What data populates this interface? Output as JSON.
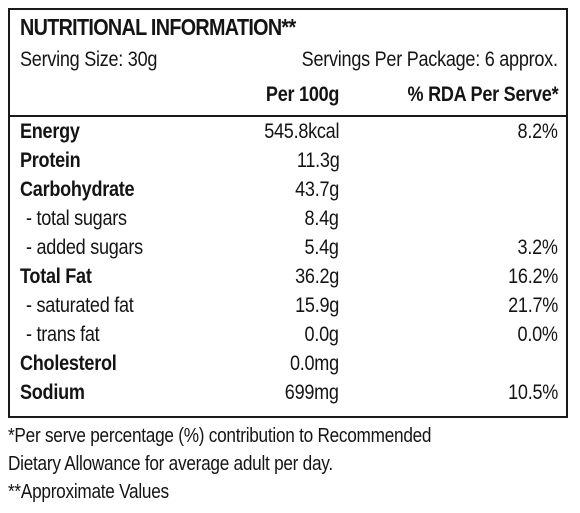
{
  "panel": {
    "title": "NUTRITIONAL INFORMATION**",
    "serving_size": "Serving Size: 30g",
    "servings_per_package": "Servings Per Package: 6 approx.",
    "col_per100": "Per 100g",
    "col_rda": "% RDA Per Serve*",
    "rows": [
      {
        "name": "Energy",
        "per100": "545.8kcal",
        "rda": "8.2%"
      },
      {
        "name": "Protein",
        "per100": "11.3g",
        "rda": ""
      },
      {
        "name": "Carbohydrate",
        "per100": "43.7g",
        "rda": ""
      },
      {
        "name": "- total sugars",
        "per100": "8.4g",
        "rda": ""
      },
      {
        "name": "- added sugars",
        "per100": "5.4g",
        "rda": "3.2%"
      },
      {
        "name": "Total Fat",
        "per100": "36.2g",
        "rda": "16.2%"
      },
      {
        "name": "- saturated fat",
        "per100": "15.9g",
        "rda": "21.7%"
      },
      {
        "name": "- trans fat",
        "per100": "0.0g",
        "rda": "0.0%"
      },
      {
        "name": "Cholesterol",
        "per100": "0.0mg",
        "rda": ""
      },
      {
        "name": "Sodium",
        "per100": "699mg",
        "rda": "10.5%"
      }
    ]
  },
  "footnotes": [
    "*Per serve percentage (%) contribution to Recommended",
    "Dietary Allowance for average adult per day.",
    "**Approximate Values"
  ]
}
